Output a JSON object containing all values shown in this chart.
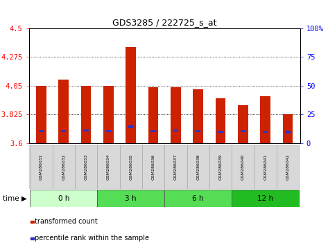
{
  "title": "GDS3285 / 222725_s_at",
  "samples": [
    "GSM286031",
    "GSM286032",
    "GSM286033",
    "GSM286034",
    "GSM286035",
    "GSM286036",
    "GSM286037",
    "GSM286038",
    "GSM286039",
    "GSM286040",
    "GSM286041",
    "GSM286042"
  ],
  "transformed_count": [
    4.05,
    4.1,
    4.05,
    4.05,
    4.35,
    4.04,
    4.04,
    4.02,
    3.95,
    3.9,
    3.97,
    3.83
  ],
  "perc_bottom": [
    3.685,
    3.685,
    3.69,
    3.685,
    3.72,
    3.685,
    3.69,
    3.685,
    3.68,
    3.685,
    3.68,
    3.678
  ],
  "perc_top": [
    3.705,
    3.705,
    3.71,
    3.705,
    3.74,
    3.705,
    3.71,
    3.705,
    3.7,
    3.705,
    3.7,
    3.698
  ],
  "ylim_left": [
    3.6,
    4.5
  ],
  "yticks_left": [
    3.6,
    3.825,
    4.05,
    4.275,
    4.5
  ],
  "ytick_labels_left": [
    "3.6",
    "3.825",
    "4.05",
    "4.275",
    "4.5"
  ],
  "ylim_right": [
    0,
    100
  ],
  "yticks_right": [
    0,
    25,
    50,
    75,
    100
  ],
  "ytick_labels_right": [
    "0",
    "25",
    "50",
    "75",
    "100%"
  ],
  "bar_color": "#cc2200",
  "blue_color": "#3333bb",
  "groups": [
    {
      "label": "0 h",
      "start": 0,
      "end": 3,
      "color": "#ccffcc"
    },
    {
      "label": "3 h",
      "start": 3,
      "end": 6,
      "color": "#55dd55"
    },
    {
      "label": "6 h",
      "start": 6,
      "end": 9,
      "color": "#55dd55"
    },
    {
      "label": "12 h",
      "start": 9,
      "end": 12,
      "color": "#22bb22"
    }
  ],
  "legend_red": "transformed count",
  "legend_blue": "percentile rank within the sample",
  "bar_width": 0.45,
  "base": 3.6,
  "fig_width": 4.73,
  "fig_height": 3.54,
  "dpi": 100
}
